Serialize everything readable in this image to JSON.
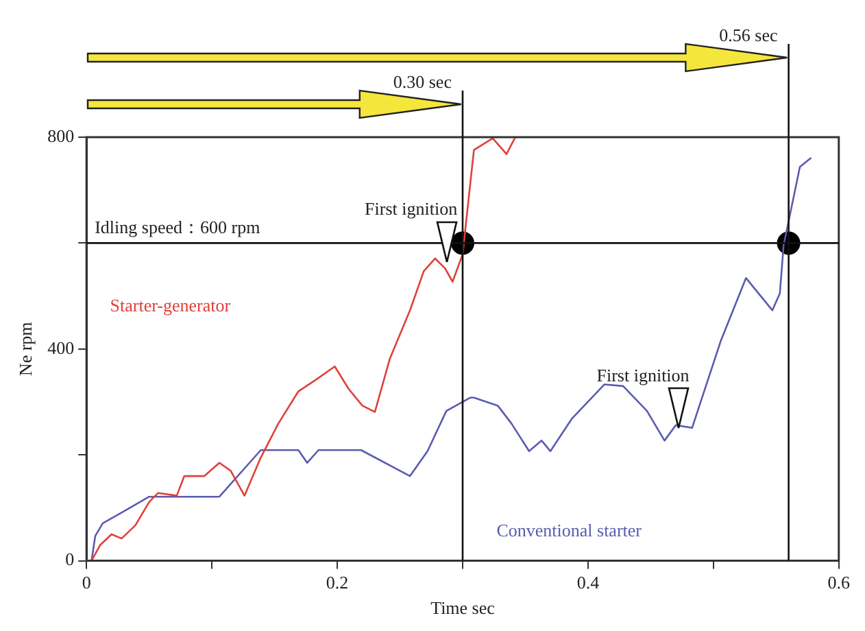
{
  "chart_data": {
    "type": "line",
    "xlabel": "Time sec",
    "ylabel": "Ne rpm",
    "xlim": [
      0,
      0.6
    ],
    "xticks": [
      0,
      {
        "value": 0.1,
        "label": null
      },
      0.2,
      {
        "value": 0.3,
        "label": null
      },
      0.4,
      {
        "value": 0.5,
        "label": null
      },
      0.6
    ],
    "ylim": [
      0,
      800
    ],
    "yticks": [
      0,
      {
        "value": 200,
        "label": null
      },
      400,
      {
        "value": 600,
        "label": null
      },
      800
    ],
    "grid": false,
    "legend": false,
    "marker": "none",
    "line_style": "solid",
    "series": [
      {
        "name": "Starter-generator",
        "color": "#e0413a",
        "x": [
          0.004,
          0.011,
          0.02,
          0.028,
          0.039,
          0.05,
          0.057,
          0.072,
          0.078,
          0.094,
          0.106,
          0.115,
          0.126,
          0.139,
          0.153,
          0.169,
          0.183,
          0.198,
          0.209,
          0.22,
          0.23,
          0.242,
          0.258,
          0.269,
          0.278,
          0.286,
          0.292,
          0.3,
          0.309,
          0.324,
          0.335,
          0.342
        ],
        "values": [
          0,
          30,
          50,
          42,
          67,
          111,
          128,
          123,
          160,
          160,
          185,
          170,
          123,
          195,
          259,
          320,
          342,
          367,
          325,
          293,
          281,
          382,
          473,
          547,
          571,
          552,
          527,
          579,
          776,
          798,
          768,
          800
        ]
      },
      {
        "name": "Conventional starter",
        "color": "#5b5bb0",
        "x": [
          0.004,
          0.007,
          0.013,
          0.028,
          0.05,
          0.106,
          0.139,
          0.169,
          0.176,
          0.185,
          0.219,
          0.258,
          0.272,
          0.287,
          0.306,
          0.309,
          0.328,
          0.339,
          0.353,
          0.363,
          0.37,
          0.387,
          0.413,
          0.428,
          0.447,
          0.461,
          0.47,
          0.483,
          0.506,
          0.526,
          0.547,
          0.553,
          0.556,
          0.569,
          0.578
        ],
        "values": [
          0,
          47,
          71,
          91,
          121,
          121,
          209,
          209,
          185,
          209,
          209,
          160,
          207,
          283,
          308,
          308,
          293,
          259,
          207,
          227,
          207,
          268,
          333,
          330,
          283,
          227,
          256,
          251,
          416,
          534,
          473,
          505,
          596,
          744,
          761
        ]
      },
      {
        "type": "scatter",
        "color": "#000000",
        "marker": "circle",
        "x": [
          0.3,
          0.56
        ],
        "values": [
          600,
          600
        ]
      }
    ],
    "ref_lines": [
      {
        "axis": "y",
        "value": 600,
        "label": "Idling speed：600 rpm"
      },
      {
        "axis": "x",
        "value": 0.3,
        "label": "0.30 sec"
      },
      {
        "axis": "x",
        "value": 0.56,
        "label": "0.56 sec"
      }
    ],
    "annotations": [
      {
        "text": "First ignition",
        "x": 0.287,
        "y": 565
      },
      {
        "text": "First ignition",
        "x": 0.472,
        "y": 251
      }
    ]
  }
}
